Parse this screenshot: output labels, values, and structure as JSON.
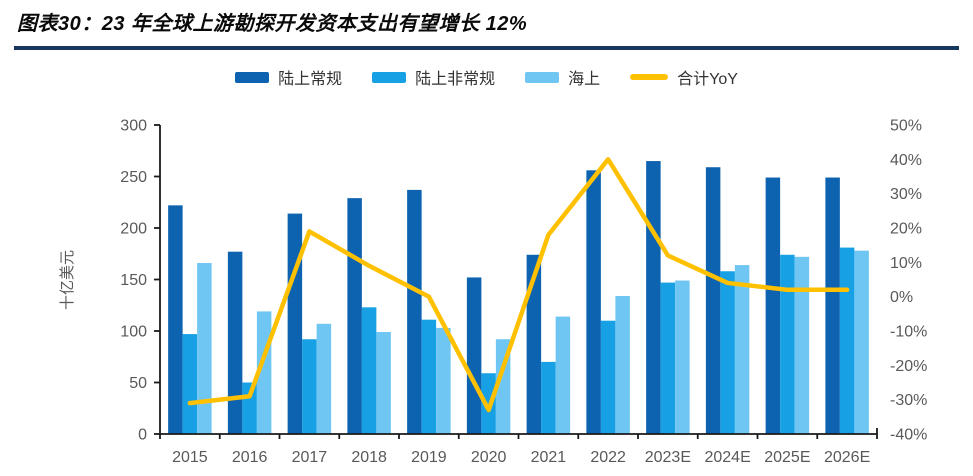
{
  "figure": {
    "title": "图表30：23 年全球上游勘探开发资本支出有望增长 12%",
    "rule_color": "#17375E",
    "axis_line_color": "#1a1a1a",
    "axis_text_color": "#595959"
  },
  "legend": [
    {
      "label": "陆上常规",
      "color": "#0E63B1",
      "swatch": "rect"
    },
    {
      "label": "陆上非常规",
      "color": "#18A0E4",
      "swatch": "rect"
    },
    {
      "label": "海上",
      "color": "#6FC6F3",
      "swatch": "rect"
    },
    {
      "label": "合计YoY",
      "color": "#FFC000",
      "swatch": "line"
    }
  ],
  "chart_data": {
    "type": "bar",
    "subtype": "grouped-bars-with-line",
    "categories": [
      "2015",
      "2016",
      "2017",
      "2018",
      "2019",
      "2020",
      "2021",
      "2022",
      "2023E",
      "2024E",
      "2025E",
      "2026E"
    ],
    "series": [
      {
        "name": "陆上常规",
        "type": "bar",
        "axis": "left",
        "color": "#0E63B1",
        "values": [
          222,
          177,
          214,
          229,
          237,
          152,
          174,
          256,
          265,
          259,
          249,
          249
        ]
      },
      {
        "name": "陆上非常规",
        "type": "bar",
        "axis": "left",
        "color": "#18A0E4",
        "values": [
          97,
          50,
          92,
          123,
          111,
          59,
          70,
          110,
          147,
          158,
          174,
          181
        ]
      },
      {
        "name": "海上",
        "type": "bar",
        "axis": "left",
        "color": "#6FC6F3",
        "values": [
          166,
          119,
          107,
          99,
          103,
          92,
          114,
          134,
          149,
          164,
          172,
          178
        ]
      },
      {
        "name": "合计YoY",
        "type": "line",
        "axis": "right",
        "color": "#FFC000",
        "values": [
          -31,
          -29,
          19,
          9,
          0,
          -33,
          18,
          40,
          12,
          4,
          2,
          2
        ]
      }
    ],
    "left_axis": {
      "label": "十亿美元",
      "min": 0,
      "max": 300,
      "step": 50,
      "tick_labels": [
        "0",
        "50",
        "100",
        "150",
        "200",
        "250",
        "300"
      ]
    },
    "right_axis": {
      "label": "",
      "min": -40,
      "max": 50,
      "step": 10,
      "tick_labels": [
        "-40%",
        "-30%",
        "-20%",
        "-10%",
        "0%",
        "10%",
        "20%",
        "30%",
        "40%",
        "50%"
      ]
    },
    "grid": false,
    "legend_position": "top-center"
  }
}
